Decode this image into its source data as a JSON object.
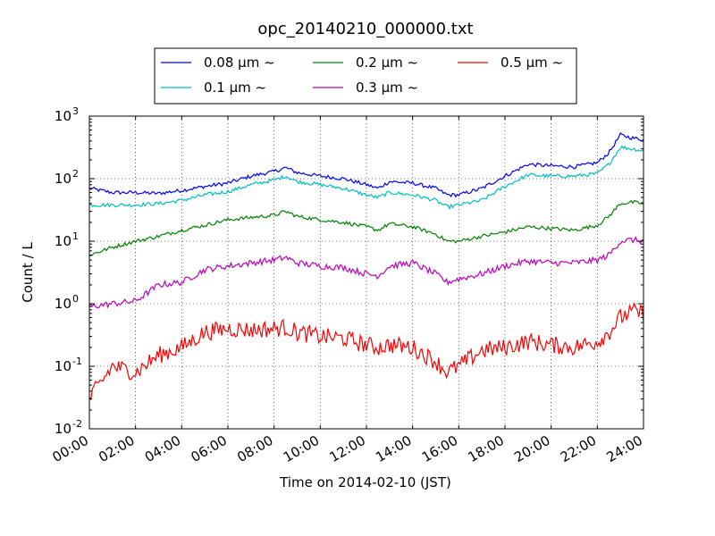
{
  "chart_data": {
    "type": "line",
    "title": "opc_20140210_000000.txt",
    "xlabel": "Time on 2014-02-10 (JST)",
    "ylabel": "Count / L",
    "yscale": "log",
    "ylim": [
      0.01,
      1000
    ],
    "xlim": [
      "00:00",
      "24:00"
    ],
    "grid": true,
    "legend_position": "top",
    "x_ticks": [
      "00:00",
      "02:00",
      "04:00",
      "06:00",
      "08:00",
      "10:00",
      "12:00",
      "14:00",
      "16:00",
      "18:00",
      "20:00",
      "22:00",
      "24:00"
    ],
    "y_ticks": [
      {
        "base": "10",
        "exp": "-2",
        "value": 0.01
      },
      {
        "base": "10",
        "exp": "-1",
        "value": 0.1
      },
      {
        "base": "10",
        "exp": "0",
        "value": 1
      },
      {
        "base": "10",
        "exp": "1",
        "value": 10
      },
      {
        "base": "10",
        "exp": "2",
        "value": 100
      },
      {
        "base": "10",
        "exp": "3",
        "value": 1000
      }
    ],
    "x": [
      "00:00",
      "01:00",
      "02:00",
      "03:00",
      "04:00",
      "05:00",
      "06:00",
      "07:00",
      "08:00",
      "08:30",
      "09:00",
      "10:00",
      "11:00",
      "12:00",
      "12:30",
      "13:00",
      "14:00",
      "15:00",
      "15:30",
      "16:00",
      "17:00",
      "18:00",
      "19:00",
      "20:00",
      "21:00",
      "22:00",
      "22:30",
      "23:00",
      "23:30",
      "24:00"
    ],
    "series": [
      {
        "name": "0.08 μm ~",
        "color": "#0000ff",
        "values": [
          70,
          60,
          60,
          58,
          65,
          75,
          85,
          110,
          130,
          150,
          125,
          110,
          100,
          80,
          70,
          90,
          85,
          70,
          55,
          55,
          70,
          110,
          170,
          160,
          155,
          180,
          260,
          500,
          450,
          420
        ]
      },
      {
        "name": "0.1 μm ~",
        "color": "#00bfbf",
        "values": [
          38,
          38,
          38,
          40,
          45,
          55,
          62,
          80,
          95,
          110,
          90,
          80,
          70,
          55,
          50,
          60,
          55,
          45,
          35,
          38,
          45,
          75,
          115,
          110,
          110,
          120,
          170,
          320,
          300,
          280
        ]
      },
      {
        "name": "0.2 μm ~",
        "color": "#008000",
        "values": [
          6,
          8,
          10,
          12,
          15,
          18,
          22,
          24,
          26,
          30,
          25,
          22,
          20,
          17,
          15,
          19,
          17,
          13,
          10,
          10,
          12,
          14,
          17,
          16,
          15,
          18,
          25,
          40,
          42,
          40
        ]
      },
      {
        "name": "0.3 μm ~",
        "color": "#bf00bf",
        "values": [
          0.9,
          1.0,
          1.1,
          2.0,
          2.2,
          3.5,
          4.0,
          4.5,
          5.0,
          5.5,
          4.5,
          4.0,
          3.8,
          3.0,
          2.8,
          4.0,
          4.5,
          3.0,
          2.2,
          2.5,
          3.0,
          4.0,
          4.8,
          4.5,
          4.5,
          5.0,
          6.0,
          10,
          10.5,
          10
        ]
      },
      {
        "name": "0.5 μm ~",
        "color": "#ff0000",
        "values": [
          0.03,
          0.1,
          0.08,
          0.15,
          0.2,
          0.35,
          0.4,
          0.38,
          0.4,
          0.42,
          0.35,
          0.3,
          0.28,
          0.22,
          0.2,
          0.22,
          0.2,
          0.12,
          0.08,
          0.1,
          0.18,
          0.2,
          0.25,
          0.22,
          0.2,
          0.25,
          0.35,
          0.6,
          0.75,
          0.7
        ]
      }
    ]
  }
}
